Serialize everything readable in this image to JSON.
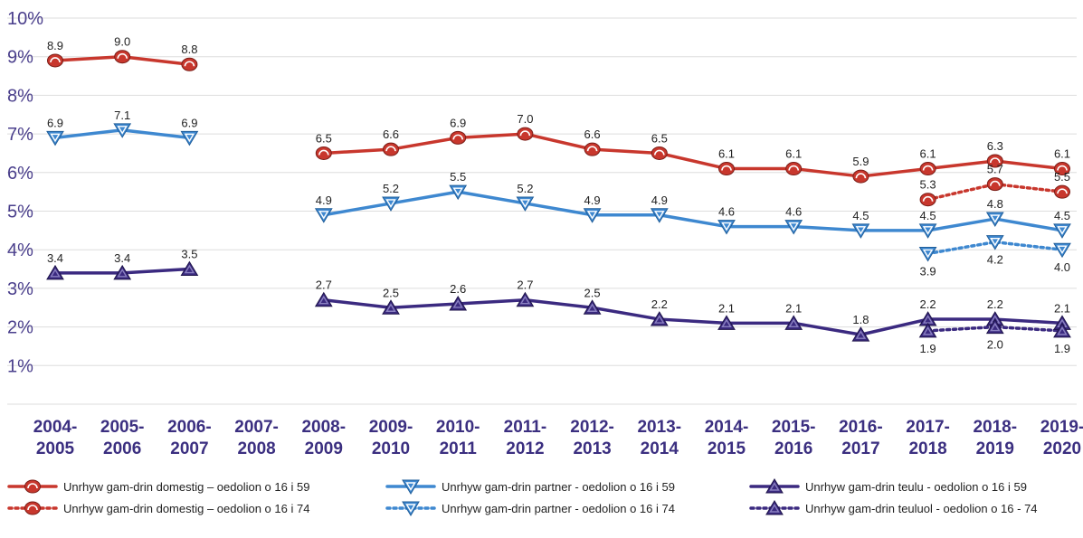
{
  "chart_data": {
    "type": "line",
    "categories": [
      [
        "2004-",
        "2005"
      ],
      [
        "2005-",
        "2006"
      ],
      [
        "2006-",
        "2007"
      ],
      [
        "2007-",
        "2008"
      ],
      [
        "2008-",
        "2009"
      ],
      [
        "2009-",
        "2010"
      ],
      [
        "2010-",
        "2011"
      ],
      [
        "2011-",
        "2012"
      ],
      [
        "2012-",
        "2013"
      ],
      [
        "2013-",
        "2014"
      ],
      [
        "2014-",
        "2015"
      ],
      [
        "2015-",
        "2016"
      ],
      [
        "2016-",
        "2017"
      ],
      [
        "2017-",
        "2018"
      ],
      [
        "2018-",
        "2019"
      ],
      [
        "2019-",
        "2020"
      ]
    ],
    "y_ticks": [
      "1%",
      "2%",
      "3%",
      "4%",
      "5%",
      "6%",
      "7%",
      "8%",
      "9%",
      "10%"
    ],
    "ylim": [
      0,
      10
    ],
    "grid": true,
    "legend_position": "bottom",
    "series": [
      {
        "name": "Unrhyw gam-drin domestig – oedolion o 16 i 59",
        "color": "#c8372d",
        "style": "solid",
        "marker": "semicircle",
        "values": [
          8.9,
          9.0,
          8.8,
          null,
          6.5,
          6.6,
          6.9,
          7.0,
          6.6,
          6.5,
          6.1,
          6.1,
          5.9,
          6.1,
          6.3,
          6.1
        ],
        "labels": [
          "8.9",
          "9.0",
          "8.8",
          null,
          "6.5",
          "6.6",
          "6.9",
          "7.0",
          "6.6",
          "6.5",
          "6.1",
          "6.1",
          "5.9",
          "6.1",
          "6.3",
          "6.1"
        ],
        "label_pos": "above"
      },
      {
        "name": "Unrhyw gam-drin domestig – oedolion o 16 i 74",
        "color": "#c8372d",
        "style": "dotted",
        "marker": "semicircle",
        "values": [
          null,
          null,
          null,
          null,
          null,
          null,
          null,
          null,
          null,
          null,
          null,
          null,
          null,
          5.3,
          5.7,
          5.5
        ],
        "labels": [
          null,
          null,
          null,
          null,
          null,
          null,
          null,
          null,
          null,
          null,
          null,
          null,
          null,
          "5.3",
          "5.7",
          "5.5"
        ],
        "label_pos": "above"
      },
      {
        "name": "Unrhyw gam-drin partner - oedolion o 16 i 59",
        "color": "#3e88d0",
        "style": "solid",
        "marker": "triangle-down",
        "values": [
          6.9,
          7.1,
          6.9,
          null,
          4.9,
          5.2,
          5.5,
          5.2,
          4.9,
          4.9,
          4.6,
          4.6,
          4.5,
          4.5,
          4.8,
          4.5
        ],
        "labels": [
          "6.9",
          "7.1",
          "6.9",
          null,
          "4.9",
          "5.2",
          "5.5",
          "5.2",
          "4.9",
          "4.9",
          "4.6",
          "4.6",
          "4.5",
          "4.5",
          "4.8",
          "4.5"
        ],
        "label_pos": "above"
      },
      {
        "name": "Unrhyw gam-drin partner - oedolion o 16 i 74",
        "color": "#3e88d0",
        "style": "dotted",
        "marker": "triangle-down",
        "values": [
          null,
          null,
          null,
          null,
          null,
          null,
          null,
          null,
          null,
          null,
          null,
          null,
          null,
          3.9,
          4.2,
          4.0
        ],
        "labels": [
          null,
          null,
          null,
          null,
          null,
          null,
          null,
          null,
          null,
          null,
          null,
          null,
          null,
          "3.9",
          "4.2",
          "4.0"
        ],
        "label_pos": "below"
      },
      {
        "name": "Unrhyw gam-drin teulu - oedolion o 16 i 59",
        "color": "#3b2a80",
        "style": "solid",
        "marker": "triangle-up",
        "values": [
          3.4,
          3.4,
          3.5,
          null,
          2.7,
          2.5,
          2.6,
          2.7,
          2.5,
          2.2,
          2.1,
          2.1,
          1.8,
          2.2,
          2.2,
          2.1
        ],
        "labels": [
          "3.4",
          "3.4",
          "3.5",
          null,
          "2.7",
          "2.5",
          "2.6",
          "2.7",
          "2.5",
          "2.2",
          "2.1",
          "2.1",
          "1.8",
          "2.2",
          "2.2",
          "2.1"
        ],
        "label_pos": "above"
      },
      {
        "name": "Unrhyw gam-drin teuluol - oedolion o 16 - 74",
        "color": "#3b2a80",
        "style": "dotted",
        "marker": "triangle-up",
        "values": [
          null,
          null,
          null,
          null,
          null,
          null,
          null,
          null,
          null,
          null,
          null,
          null,
          null,
          1.9,
          2.0,
          1.9
        ],
        "labels": [
          null,
          null,
          null,
          null,
          null,
          null,
          null,
          null,
          null,
          null,
          null,
          null,
          null,
          "1.9",
          "2.0",
          "1.9"
        ],
        "label_pos": "below"
      }
    ]
  }
}
